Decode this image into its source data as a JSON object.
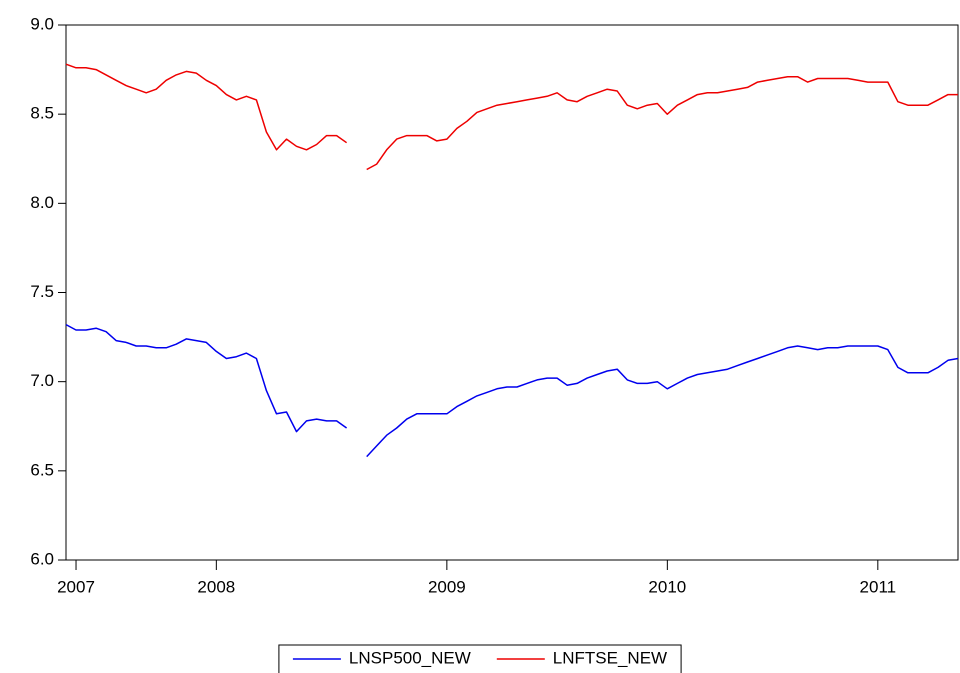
{
  "chart_data": {
    "type": "line",
    "categories": [
      null,
      "2007",
      null,
      null,
      null,
      null,
      null,
      null,
      null,
      null,
      null,
      null,
      null,
      null,
      null,
      "2008",
      null,
      null,
      null,
      null,
      null,
      null,
      null,
      null,
      null,
      null,
      null,
      null,
      null,
      null,
      null,
      null,
      null,
      null,
      null,
      null,
      null,
      null,
      "2009",
      null,
      null,
      null,
      null,
      null,
      null,
      null,
      null,
      null,
      null,
      null,
      null,
      null,
      null,
      null,
      null,
      null,
      null,
      null,
      null,
      null,
      "2010",
      null,
      null,
      null,
      null,
      null,
      null,
      null,
      null,
      null,
      null,
      null,
      null,
      null,
      null,
      null,
      null,
      null,
      null,
      null,
      null,
      "2011",
      null,
      null,
      null,
      null,
      null,
      null,
      null,
      null
    ],
    "series": [
      {
        "name": "LNSP500_NEW",
        "color": "#0000ee",
        "values": [
          7.32,
          7.29,
          7.29,
          7.3,
          7.28,
          7.23,
          7.22,
          7.2,
          7.2,
          7.19,
          7.19,
          7.21,
          7.24,
          7.23,
          7.22,
          7.17,
          7.13,
          7.14,
          7.16,
          7.13,
          6.95,
          6.82,
          6.83,
          6.72,
          6.78,
          6.79,
          6.78,
          6.78,
          6.74,
          null,
          6.58,
          6.64,
          6.7,
          6.74,
          6.79,
          6.82,
          6.82,
          6.82,
          6.82,
          6.86,
          6.89,
          6.92,
          6.94,
          6.96,
          6.97,
          6.97,
          6.99,
          7.01,
          7.02,
          7.02,
          6.98,
          6.99,
          7.02,
          7.04,
          7.06,
          7.07,
          7.01,
          6.99,
          6.99,
          7.0,
          6.96,
          6.99,
          7.02,
          7.04,
          7.05,
          7.06,
          7.07,
          7.09,
          7.11,
          7.13,
          7.15,
          7.17,
          7.19,
          7.2,
          7.19,
          7.18,
          7.19,
          7.19,
          7.2,
          7.2,
          7.2,
          7.2,
          7.18,
          7.08,
          7.05,
          7.05,
          7.05,
          7.08,
          7.12,
          7.13
        ]
      },
      {
        "name": "LNFTSE_NEW",
        "color": "#ee0000",
        "values": [
          8.78,
          8.76,
          8.76,
          8.75,
          8.72,
          8.69,
          8.66,
          8.64,
          8.62,
          8.64,
          8.69,
          8.72,
          8.74,
          8.73,
          8.69,
          8.66,
          8.61,
          8.58,
          8.6,
          8.58,
          8.4,
          8.3,
          8.36,
          8.32,
          8.3,
          8.33,
          8.38,
          8.38,
          8.34,
          null,
          8.19,
          8.22,
          8.3,
          8.36,
          8.38,
          8.38,
          8.38,
          8.35,
          8.36,
          8.42,
          8.46,
          8.51,
          8.53,
          8.55,
          8.56,
          8.57,
          8.58,
          8.59,
          8.6,
          8.62,
          8.58,
          8.57,
          8.6,
          8.62,
          8.64,
          8.63,
          8.55,
          8.53,
          8.55,
          8.56,
          8.5,
          8.55,
          8.58,
          8.61,
          8.62,
          8.62,
          8.63,
          8.64,
          8.65,
          8.68,
          8.69,
          8.7,
          8.71,
          8.71,
          8.68,
          8.7,
          8.7,
          8.7,
          8.7,
          8.69,
          8.68,
          8.68,
          8.68,
          8.57,
          8.55,
          8.55,
          8.55,
          8.58,
          8.61,
          8.61
        ]
      }
    ],
    "ylim": [
      6,
      9
    ],
    "yticks": [
      {
        "value": 6,
        "label": "6.0"
      },
      6.5,
      {
        "value": 7,
        "label": "7.0"
      },
      7.5,
      {
        "value": 8,
        "label": "8.0"
      },
      8.5,
      {
        "value": 9,
        "label": "9.0"
      }
    ],
    "grid": false,
    "legend": "bottom"
  }
}
